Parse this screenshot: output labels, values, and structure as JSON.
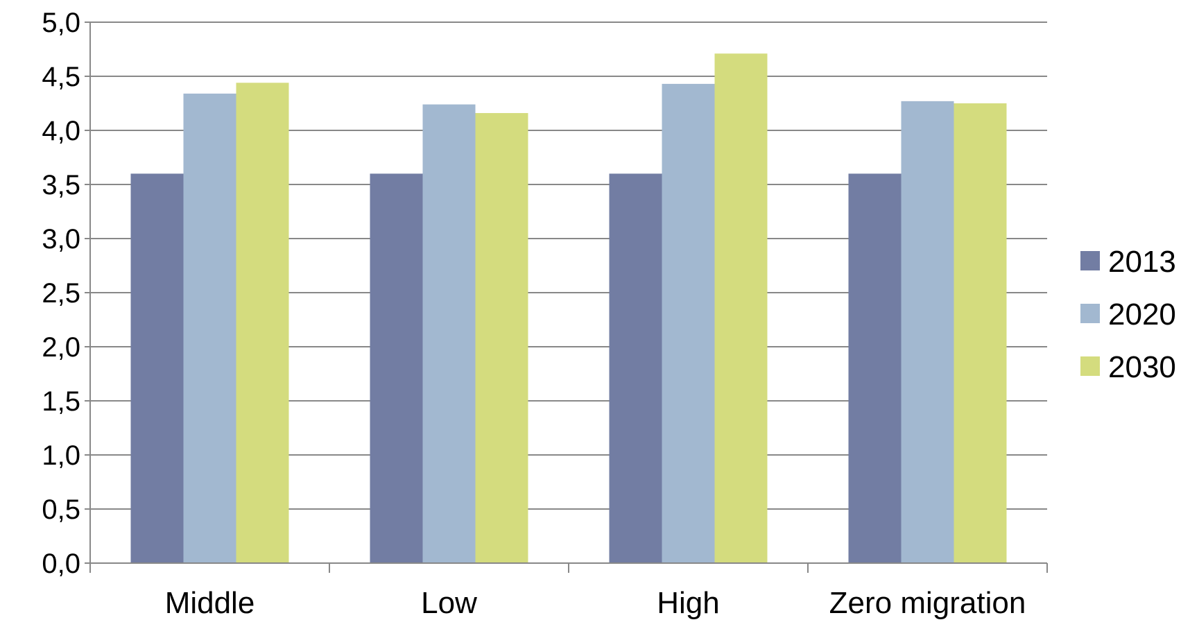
{
  "chart_data": {
    "type": "bar",
    "title": "",
    "xlabel": "",
    "ylabel": "",
    "categories": [
      "Middle",
      "Low",
      "High",
      "Zero migration"
    ],
    "series": [
      {
        "name": "2013",
        "color": "#727da3",
        "values": [
          3.6,
          3.6,
          3.6,
          3.6
        ]
      },
      {
        "name": "2020",
        "color": "#a2b8d0",
        "values": [
          4.34,
          4.24,
          4.43,
          4.27
        ]
      },
      {
        "name": "2030",
        "color": "#d4dc7e",
        "values": [
          4.44,
          4.16,
          4.71,
          4.25
        ]
      }
    ],
    "ylim": [
      0,
      5
    ],
    "y_ticks": [
      "0,0",
      "0,5",
      "1,0",
      "1,5",
      "2,0",
      "2,5",
      "3,0",
      "3,5",
      "4,0",
      "4,5",
      "5,0"
    ],
    "grid": true,
    "legend_position": "right",
    "colors": {
      "gridline": "#888888",
      "axis": "#888888"
    }
  }
}
